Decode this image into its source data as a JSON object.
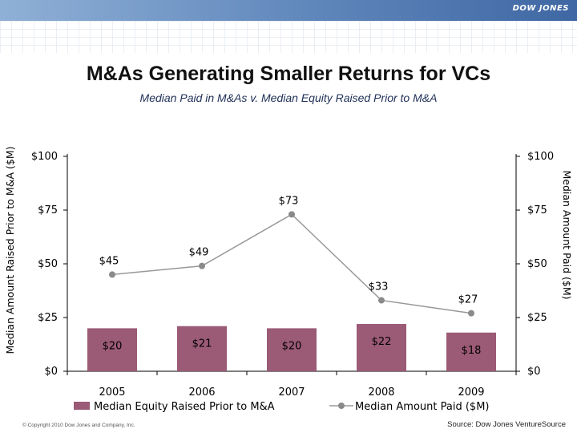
{
  "header": {
    "logo_text": "DOW JONES"
  },
  "colors": {
    "bar": "#9b5a75",
    "line": "#999999",
    "marker": "#8a8a8a",
    "axis": "#000000",
    "title_band": "#5f86bb"
  },
  "footer": {
    "copyright": "© Copyright 2010 Dow Jones and Company, Inc.",
    "source": "Source: Dow Jones VentureSource"
  },
  "chart_data": {
    "type": "bar",
    "title": "M&As Generating Smaller Returns for VCs",
    "subtitle": "Median Paid in M&As v. Median Equity Raised Prior to M&A",
    "categories": [
      "2005",
      "2006",
      "2007",
      "2008",
      "2009"
    ],
    "series": [
      {
        "name": "Median Equity Raised Prior to M&A",
        "type": "bar",
        "axis": "left",
        "values": [
          20,
          21,
          20,
          22,
          18
        ],
        "labels": [
          "$20",
          "$21",
          "$20",
          "$22",
          "$18"
        ]
      },
      {
        "name": "Median Amount Paid ($M)",
        "type": "line",
        "axis": "right",
        "values": [
          45,
          49,
          73,
          33,
          27
        ],
        "labels": [
          "$45",
          "$49",
          "$73",
          "$33",
          "$27"
        ]
      }
    ],
    "ylabel_left": "Median Amount Raised Prior to M&A ($M)",
    "ylabel_right": "Median Amount Paid ($M)",
    "ylim_left": [
      0,
      100
    ],
    "ylim_right": [
      0,
      100
    ],
    "yticks_left": [
      "$0",
      "$25",
      "$50",
      "$75",
      "$100"
    ],
    "yticks_right": [
      "$0",
      "$25",
      "$50",
      "$75",
      "$100"
    ],
    "ytick_values": [
      0,
      25,
      50,
      75,
      100
    ],
    "grid": false,
    "legend_position": "bottom"
  }
}
